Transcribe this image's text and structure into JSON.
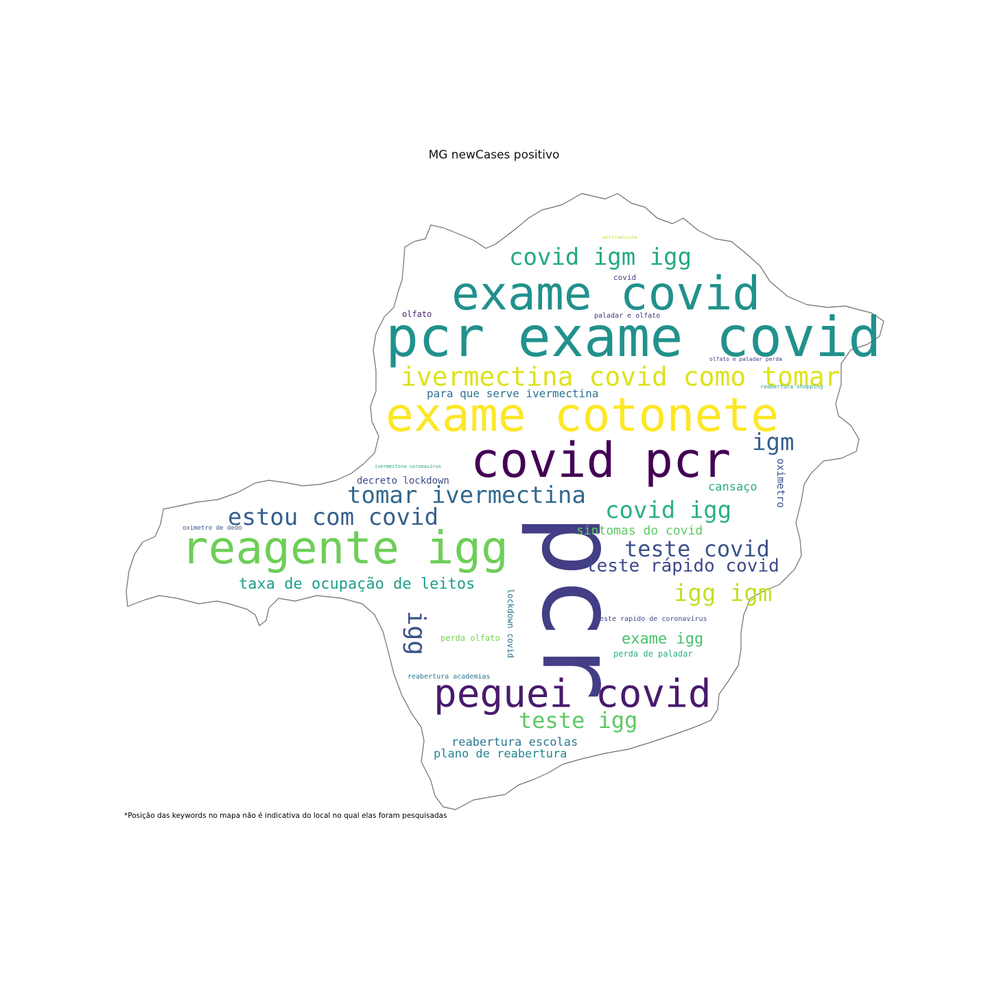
{
  "title": "MG newCases positivo",
  "footnote": "*Posição das keywords no mapa não é indicativa do local no qual elas foram pesquisadas",
  "words": [
    {
      "text": "pcr exame covid",
      "color": "#21918c"
    },
    {
      "text": "exame covid",
      "color": "#21918c"
    },
    {
      "text": "exame cotonete",
      "color": "#fde725"
    },
    {
      "text": "covid pcr",
      "color": "#440154"
    },
    {
      "text": "pcr",
      "color": "#433e85"
    },
    {
      "text": "reagente igg",
      "color": "#6ece58"
    },
    {
      "text": "peguei covid",
      "color": "#481a6c"
    },
    {
      "text": "covid igm igg",
      "color": "#22a884"
    },
    {
      "text": "ivermectina covid como tomar",
      "color": "#dde318"
    },
    {
      "text": "tomar ivermectina",
      "color": "#31688e"
    },
    {
      "text": "estou com covid",
      "color": "#355f8d"
    },
    {
      "text": "covid igg",
      "color": "#2ab07f"
    },
    {
      "text": "teste covid",
      "color": "#3b528b"
    },
    {
      "text": "teste rápido covid",
      "color": "#3e4a89"
    },
    {
      "text": "igg igm",
      "color": "#c2df23"
    },
    {
      "text": "igm",
      "color": "#355f8d"
    },
    {
      "text": "teste igg",
      "color": "#5ec962"
    },
    {
      "text": "igg",
      "color": "#3b528b"
    },
    {
      "text": "taxa de ocupação de leitos",
      "color": "#1f9e89"
    },
    {
      "text": "sintomas do covid",
      "color": "#5ec962"
    },
    {
      "text": "exame igg",
      "color": "#4ac16d"
    },
    {
      "text": "para que serve ivermectina",
      "color": "#2c728e"
    },
    {
      "text": "reabertura escolas",
      "color": "#2a788e"
    },
    {
      "text": "plano de reabertura",
      "color": "#25858e"
    },
    {
      "text": "cansaço",
      "color": "#26ad81"
    },
    {
      "text": "decreto lockdown",
      "color": "#3e4989"
    },
    {
      "text": "oximetro",
      "color": "#3b528b"
    },
    {
      "text": "lockdown covid",
      "color": "#2c728e"
    },
    {
      "text": "perda olfato",
      "color": "#7ad151"
    },
    {
      "text": "perda de paladar",
      "color": "#2ab07f"
    },
    {
      "text": "teste rapido de coronavírus",
      "color": "#3e4a89"
    },
    {
      "text": "reabertura academias",
      "color": "#2a788e"
    },
    {
      "text": "olfato",
      "color": "#482878"
    },
    {
      "text": "paladar e olfato",
      "color": "#472d7b"
    },
    {
      "text": "covid",
      "color": "#414487"
    },
    {
      "text": "azitromicina",
      "color": "#bddf26"
    },
    {
      "text": "olfato e paladar perda",
      "color": "#443983"
    },
    {
      "text": "reabertura shopping",
      "color": "#2a9d8f"
    },
    {
      "text": "ivermectina coronavirus",
      "color": "#20a386"
    },
    {
      "text": "oximetro de dedo",
      "color": "#3b528b"
    }
  ]
}
